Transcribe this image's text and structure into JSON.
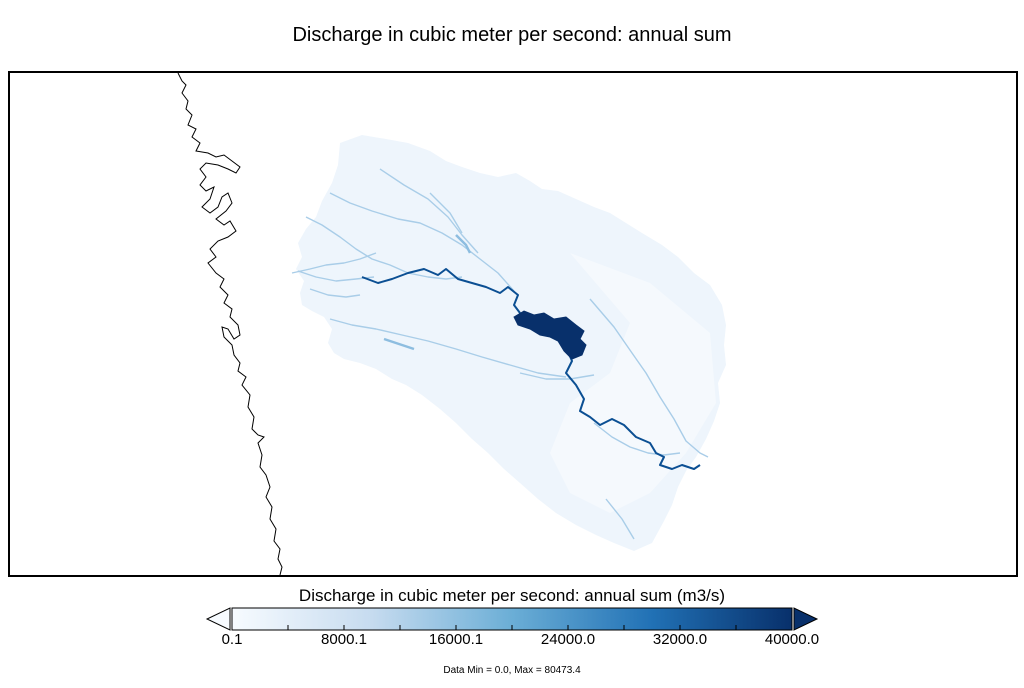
{
  "title": "Discharge in cubic meter per second: annual sum",
  "colorbar": {
    "title": "Discharge in cubic meter per second: annual sum (m3/s)",
    "min": 0.1,
    "max": 40000.0,
    "tick_labels": [
      "0.1",
      "8000.1",
      "16000.1",
      "24000.0",
      "32000.0",
      "40000.0"
    ],
    "tick_values": [
      0.1,
      8000.1,
      16000.1,
      24000.0,
      32000.0,
      40000.0
    ],
    "extend": "both",
    "colormap": "Blues",
    "colors": [
      "#f7fbff",
      "#c6dbef",
      "#6baed6",
      "#2171b5",
      "#08306b"
    ]
  },
  "data_range_text": "Data Min = 0.0, Max = 80473.4",
  "map": {
    "background": "#ffffff",
    "coastline_color": "#000000",
    "basin_fill": "#eef5fc",
    "main_river_color": "#0b4f93",
    "reservoir_color": "#08306b",
    "tributary_color": "#a9cde8"
  }
}
